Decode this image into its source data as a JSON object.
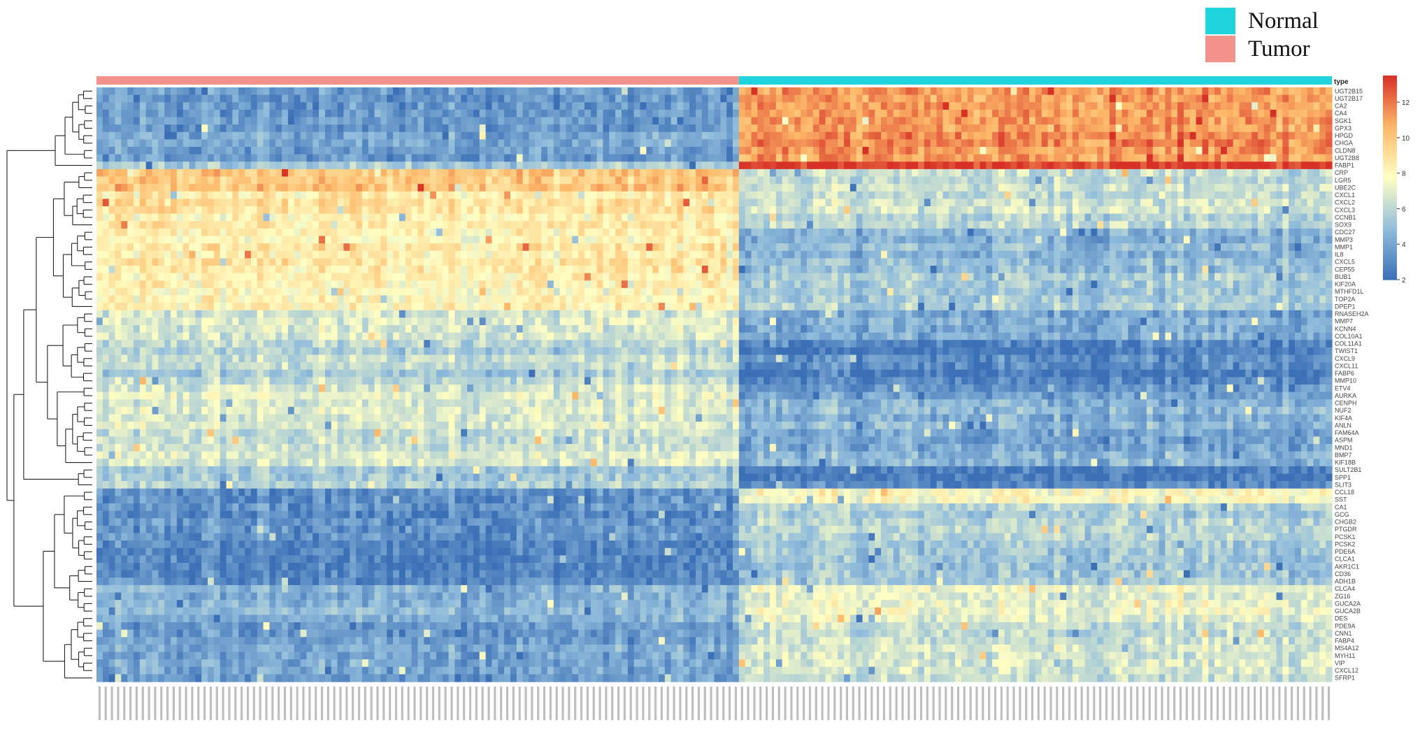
{
  "chart_data": {
    "type": "heatmap",
    "title": "",
    "annotation_label": "type",
    "legend": {
      "title": "",
      "entries": [
        {
          "name": "Normal",
          "color": "#1fd4dc"
        },
        {
          "name": "Tumor",
          "color": "#f2928b"
        }
      ],
      "placement": "top-right"
    },
    "colorbar": {
      "min": 2,
      "max": 13.5,
      "ticks": [
        2,
        4,
        6,
        8,
        10,
        12
      ],
      "colors": [
        "#3b6fb6",
        "#93bedc",
        "#ffffc4",
        "#fdb869",
        "#d73027"
      ]
    },
    "groups": [
      {
        "name": "Tumor",
        "columns": 104,
        "color": "#f2928b"
      },
      {
        "name": "Normal",
        "columns": 96,
        "color": "#1fd4dc"
      }
    ],
    "row_labels": [
      "UGT2B15",
      "UGT2B17",
      "CA2",
      "CA4",
      "SGK1",
      "GPX3",
      "HPGD",
      "CHGA",
      "CLDN8",
      "UGT2B8",
      "FABP1",
      "CRP",
      "LGR5",
      "UBE2C",
      "CXCL1",
      "CXCL2",
      "CXCL3",
      "CCNB1",
      "SOX9",
      "CDC27",
      "MMP3",
      "MMP1",
      "IL8",
      "CXCL5",
      "CEP55",
      "BUB1",
      "KIF20A",
      "MTHFD1L",
      "TOP2A",
      "DPEP1",
      "RNASEH2A",
      "MMP7",
      "KCNN4",
      "COL10A1",
      "COL11A1",
      "TWIST1",
      "CXCL9",
      "CXCL11",
      "FABP6",
      "MMP10",
      "ETV4",
      "AURKA",
      "CENPH",
      "NUF2",
      "KIF4A",
      "ANLN",
      "FAM64A",
      "ASPM",
      "MND1",
      "BMP7",
      "KIF18B",
      "SULT2B1",
      "SPP1",
      "SLIT3",
      "CCL18",
      "SST",
      "CA1",
      "GCG",
      "CHGB2",
      "PTGDR",
      "PCSK1",
      "PCSK2",
      "PDE6A",
      "CLCA1",
      "AKR1C1",
      "CD36",
      "ADH1B",
      "CLCA4",
      "ZG16",
      "GUCA2A",
      "GUCA2B",
      "DES",
      "PDE9A",
      "CNN1",
      "FABP4",
      "MS4A12",
      "MYH11",
      "VIP",
      "CXCL12",
      "SFRP1"
    ],
    "blocks": [
      {
        "rows": 10,
        "tumor": 3.6,
        "normal": 11.2
      },
      {
        "rows": 1,
        "tumor": 5.0,
        "normal": 13.0
      },
      {
        "rows": 3,
        "tumor": 10.2,
        "normal": 6.5
      },
      {
        "rows": 5,
        "tumor": 8.6,
        "normal": 6.2
      },
      {
        "rows": 6,
        "tumor": 8.4,
        "normal": 4.6
      },
      {
        "rows": 5,
        "tumor": 7.9,
        "normal": 5.2
      },
      {
        "rows": 4,
        "tumor": 6.6,
        "normal": 4.1
      },
      {
        "rows": 6,
        "tumor": 5.9,
        "normal": 2.8
      },
      {
        "rows": 2,
        "tumor": 6.8,
        "normal": 3.6
      },
      {
        "rows": 9,
        "tumor": 6.5,
        "normal": 4.3
      },
      {
        "rows": 3,
        "tumor": 5.4,
        "normal": 2.7
      },
      {
        "rows": 2,
        "tumor": 2.9,
        "normal": 7.6
      },
      {
        "rows": 8,
        "tumor": 3.1,
        "normal": 5.6
      },
      {
        "rows": 3,
        "tumor": 3.0,
        "normal": 5.4
      },
      {
        "rows": 4,
        "tumor": 4.6,
        "normal": 7.3
      },
      {
        "rows": 9,
        "tumor": 3.9,
        "normal": 6.6
      }
    ]
  }
}
